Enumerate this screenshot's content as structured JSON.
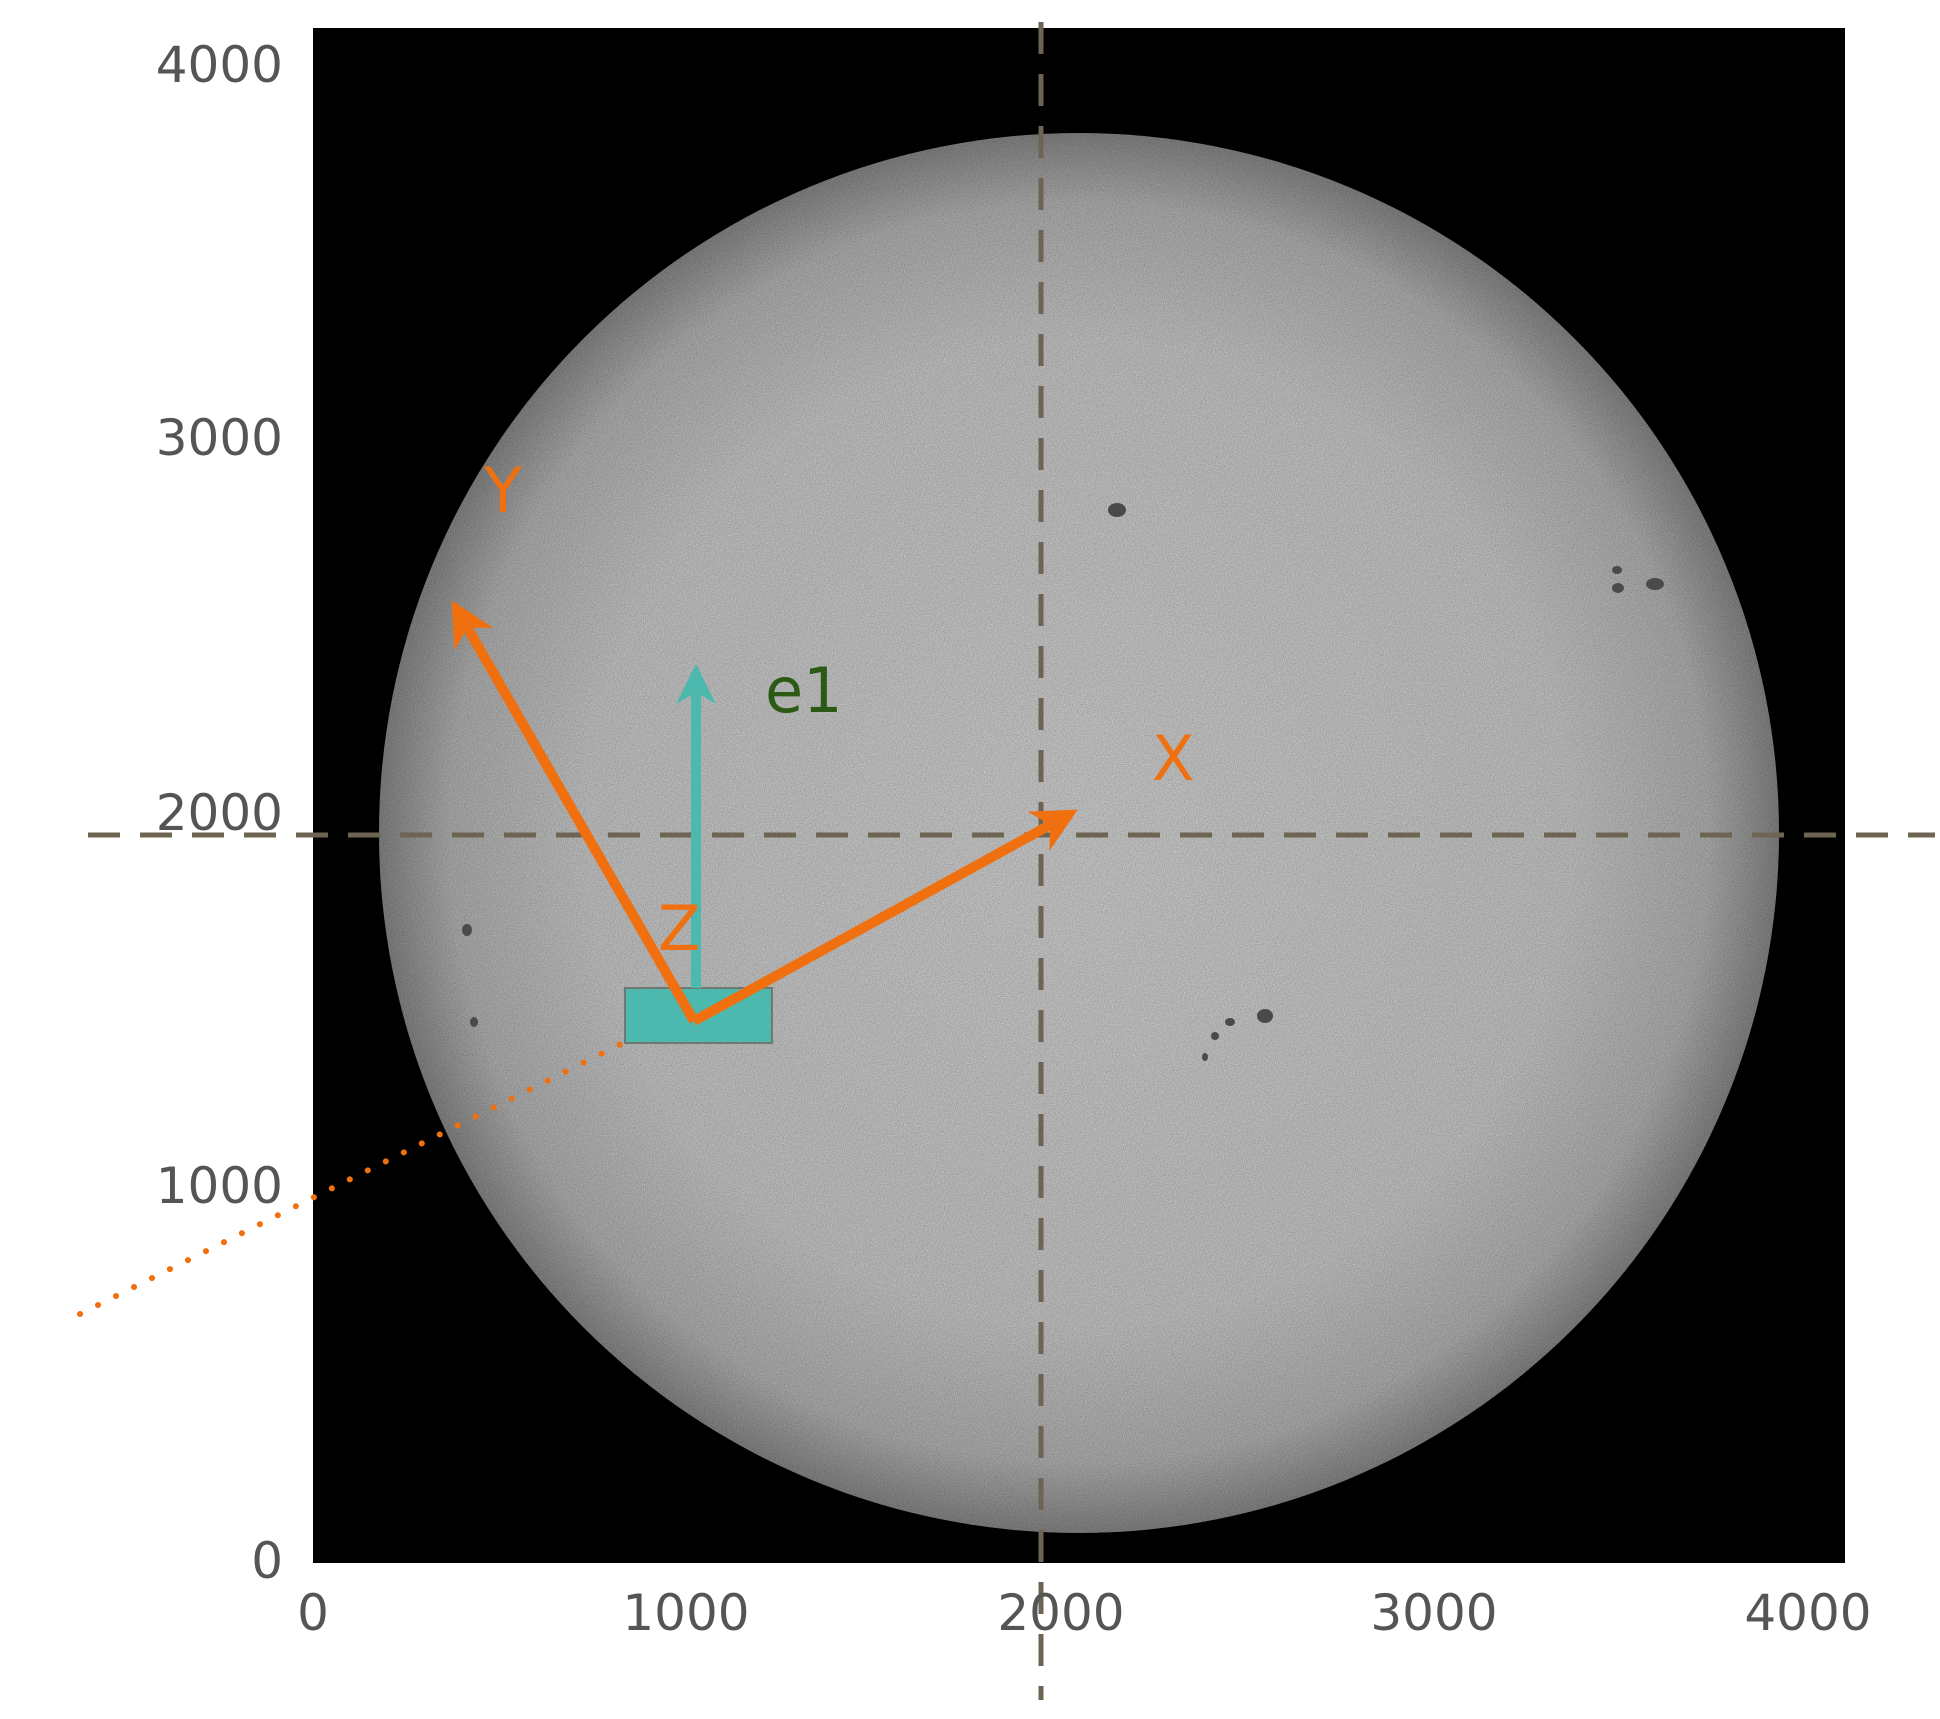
{
  "figure": {
    "x_ticks": [
      "0",
      "1000",
      "2000",
      "3000",
      "4000"
    ],
    "y_ticks": [
      "0",
      "1000",
      "2000",
      "3000",
      "4000"
    ]
  },
  "image": {
    "background": "#000000",
    "disk_color": "#d4d4d4",
    "disk_limb_color": "#8a8a8a"
  },
  "labels": {
    "x_axis_vector": "X",
    "y_axis_vector": "Y",
    "z_axis_vector": "Z",
    "e1_vector": "e1"
  },
  "colors": {
    "orange": "#f07010",
    "teal": "#4db8ae",
    "dark_green": "#2a5a14",
    "crosshair": "#6e6452",
    "tick_text": "#555555"
  },
  "chart_data": {
    "type": "image",
    "x_range": [
      0,
      4000
    ],
    "y_range": [
      0,
      4000
    ],
    "xticks": [
      0,
      1000,
      2000,
      3000,
      4000
    ],
    "yticks": [
      0,
      1000,
      2000,
      3000,
      4000
    ],
    "crosshair": {
      "x": 2000,
      "y": 1970
    },
    "disk": {
      "center_x": 2000,
      "center_y": 1970,
      "radius": 1880
    }
  }
}
